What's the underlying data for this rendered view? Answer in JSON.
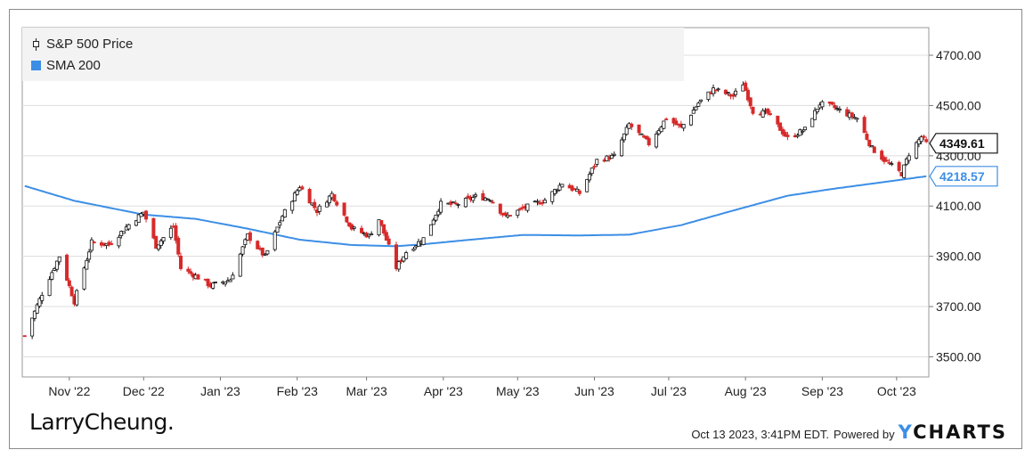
{
  "legend": {
    "price_label": "S&P 500 Price",
    "sma_label": "SMA 200"
  },
  "brand": "LarryCheung.",
  "footer": {
    "timestamp": "Oct 13 2023, 3:41PM EDT.",
    "powered_by": "Powered by",
    "logo_y": "Y",
    "logo_rest": "CHARTS"
  },
  "colors": {
    "up": "#111111",
    "down": "#d62a2a",
    "sma": "#3c8ee6",
    "grid": "#dddddd"
  },
  "chart_data": {
    "type": "line",
    "series": [
      {
        "name": "S&P 500 Price",
        "style": "candlestick",
        "anchors": [
          [
            "2022-10-14",
            3583
          ],
          [
            "2022-10-21",
            3752
          ],
          [
            "2022-10-28",
            3901
          ],
          [
            "2022-11-03",
            3720
          ],
          [
            "2022-11-10",
            3956
          ],
          [
            "2022-11-17",
            3946
          ],
          [
            "2022-11-25",
            4026
          ],
          [
            "2022-12-01",
            4076
          ],
          [
            "2022-12-06",
            3941
          ],
          [
            "2022-12-13",
            4019
          ],
          [
            "2022-12-16",
            3852
          ],
          [
            "2022-12-22",
            3822
          ],
          [
            "2022-12-28",
            3783
          ],
          [
            "2023-01-05",
            3808
          ],
          [
            "2023-01-12",
            3983
          ],
          [
            "2023-01-19",
            3898
          ],
          [
            "2023-01-26",
            4060
          ],
          [
            "2023-02-02",
            4179
          ],
          [
            "2023-02-09",
            4081
          ],
          [
            "2023-02-15",
            4148
          ],
          [
            "2023-02-23",
            4012
          ],
          [
            "2023-03-02",
            3981
          ],
          [
            "2023-03-06",
            4048
          ],
          [
            "2023-03-13",
            3855
          ],
          [
            "2023-03-17",
            3917
          ],
          [
            "2023-03-24",
            3971
          ],
          [
            "2023-03-31",
            4109
          ],
          [
            "2023-04-06",
            4105
          ],
          [
            "2023-04-14",
            4137
          ],
          [
            "2023-04-20",
            4130
          ],
          [
            "2023-04-26",
            4056
          ],
          [
            "2023-05-03",
            4090
          ],
          [
            "2023-05-12",
            4124
          ],
          [
            "2023-05-19",
            4191
          ],
          [
            "2023-05-26",
            4151
          ],
          [
            "2023-06-02",
            4282
          ],
          [
            "2023-06-09",
            4298
          ],
          [
            "2023-06-15",
            4425
          ],
          [
            "2023-06-23",
            4348
          ],
          [
            "2023-06-30",
            4450
          ],
          [
            "2023-07-06",
            4411
          ],
          [
            "2023-07-13",
            4510
          ],
          [
            "2023-07-19",
            4565
          ],
          [
            "2023-07-27",
            4537
          ],
          [
            "2023-07-31",
            4588
          ],
          [
            "2023-08-04",
            4478
          ],
          [
            "2023-08-10",
            4468
          ],
          [
            "2023-08-18",
            4369
          ],
          [
            "2023-08-25",
            4405
          ],
          [
            "2023-08-31",
            4507
          ],
          [
            "2023-09-05",
            4496
          ],
          [
            "2023-09-12",
            4461
          ],
          [
            "2023-09-15",
            4450
          ],
          [
            "2023-09-21",
            4330
          ],
          [
            "2023-09-27",
            4274
          ],
          [
            "2023-10-03",
            4229
          ],
          [
            "2023-10-06",
            4308
          ],
          [
            "2023-10-11",
            4376
          ],
          [
            "2023-10-13",
            4349.61
          ]
        ]
      },
      {
        "name": "SMA 200",
        "style": "line",
        "anchors": [
          [
            "2022-10-14",
            4180
          ],
          [
            "2022-11-03",
            4121
          ],
          [
            "2022-12-01",
            4066
          ],
          [
            "2022-12-22",
            4049
          ],
          [
            "2023-01-12",
            4010
          ],
          [
            "2023-02-02",
            3966
          ],
          [
            "2023-02-23",
            3945
          ],
          [
            "2023-03-13",
            3940
          ],
          [
            "2023-03-24",
            3948
          ],
          [
            "2023-04-14",
            3968
          ],
          [
            "2023-05-03",
            3985
          ],
          [
            "2023-05-26",
            3983
          ],
          [
            "2023-06-15",
            3986
          ],
          [
            "2023-07-06",
            4024
          ],
          [
            "2023-07-27",
            4082
          ],
          [
            "2023-08-18",
            4141
          ],
          [
            "2023-09-05",
            4168
          ],
          [
            "2023-09-27",
            4197
          ],
          [
            "2023-10-13",
            4218.57
          ]
        ]
      }
    ],
    "last_labels": {
      "price": "4349.61",
      "sma": "4218.57"
    },
    "x_ticks": [
      [
        "2022-11-01",
        "Nov '22"
      ],
      [
        "2022-12-01",
        "Dec '22"
      ],
      [
        "2023-01-01",
        "Jan '23"
      ],
      [
        "2023-02-01",
        "Feb '23"
      ],
      [
        "2023-03-01",
        "Mar '23"
      ],
      [
        "2023-04-01",
        "Apr '23"
      ],
      [
        "2023-05-01",
        "May '23"
      ],
      [
        "2023-06-01",
        "Jun '23"
      ],
      [
        "2023-07-01",
        "Jul '23"
      ],
      [
        "2023-08-01",
        "Aug '23"
      ],
      [
        "2023-09-01",
        "Sep '23"
      ],
      [
        "2023-10-01",
        "Oct '23"
      ]
    ],
    "y_ticks": [
      3500,
      3700,
      3900,
      4100,
      4300,
      4500,
      4700
    ],
    "y_tick_labels": [
      "3500.00",
      "3700.00",
      "3900.00",
      "4100.00",
      "4300.00",
      "4500.00",
      "4700.00"
    ],
    "x_range": [
      "2022-10-13",
      "2023-10-14"
    ],
    "ylim": [
      3420,
      4810
    ],
    "grid": true,
    "y_axis_position": "right",
    "legend_position": "top-left"
  }
}
